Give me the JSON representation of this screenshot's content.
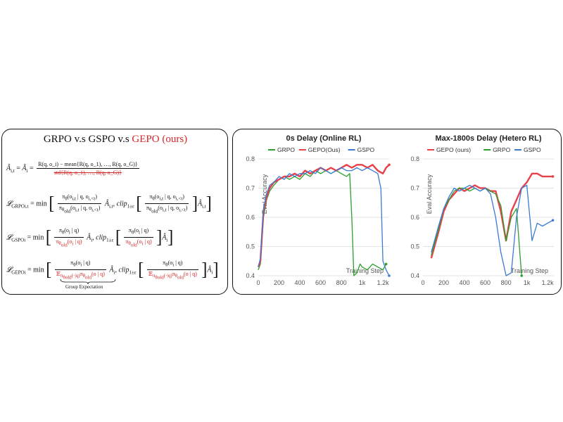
{
  "left": {
    "title_prefix": "GRPO v.s GSPO v.s ",
    "title_ours": "GEPO (ours)",
    "eq1": {
      "lhs": "Â",
      "numerator": "R(q, o_i) − mean{R(q, o_1), …, R(q, o_G)}",
      "denominator": "std{R(q, o_1), …, R(q, o_G)}"
    },
    "eq2": {
      "label": "GRPO",
      "clip": "clip"
    },
    "eq3": {
      "label": "GSPO",
      "clip": "clip"
    },
    "eq4": {
      "label": "GEPO",
      "clip": "clip",
      "brace_note": "Group Expectation"
    }
  },
  "chart_data": [
    {
      "type": "line",
      "title": "0s Delay (Online RL)",
      "ylabel": "Eval Accuracy",
      "xlabel": "Training Step",
      "xlim": [
        0,
        1260
      ],
      "ylim": [
        0.4,
        0.8
      ],
      "xticks": [
        "0",
        "200",
        "400",
        "600",
        "800",
        "1k",
        "1.2k"
      ],
      "xtick_values": [
        0,
        200,
        400,
        600,
        800,
        1000,
        1200
      ],
      "yticks": [
        "0.4",
        "0.5",
        "0.6",
        "0.7",
        "0.8"
      ],
      "ytick_values": [
        0.4,
        0.5,
        0.6,
        0.7,
        0.8
      ],
      "legend": [
        "GRPO",
        "GEPO(Ous)",
        "GSPO"
      ],
      "series": [
        {
          "name": "GRPO",
          "color": "#2ca02c",
          "x": [
            0,
            20,
            50,
            80,
            110,
            150,
            200,
            250,
            300,
            350,
            400,
            450,
            500,
            550,
            600,
            650,
            700,
            750,
            800,
            850,
            880,
            900,
            920,
            950,
            980,
            1000,
            1050,
            1100,
            1150,
            1200,
            1230
          ],
          "y": [
            0.42,
            0.44,
            0.6,
            0.66,
            0.69,
            0.71,
            0.73,
            0.74,
            0.73,
            0.74,
            0.73,
            0.75,
            0.74,
            0.76,
            0.75,
            0.76,
            0.75,
            0.76,
            0.75,
            0.74,
            0.75,
            0.6,
            0.4,
            0.41,
            0.44,
            0.43,
            0.42,
            0.44,
            0.43,
            0.42,
            0.44
          ]
        },
        {
          "name": "GEPO(Ous)",
          "color": "#e8414a",
          "x": [
            0,
            20,
            50,
            80,
            110,
            150,
            200,
            250,
            300,
            350,
            400,
            450,
            500,
            550,
            600,
            650,
            700,
            750,
            800,
            850,
            900,
            950,
            1000,
            1050,
            1100,
            1150,
            1200,
            1230,
            1260
          ],
          "y": [
            0.43,
            0.45,
            0.62,
            0.67,
            0.7,
            0.72,
            0.73,
            0.74,
            0.74,
            0.75,
            0.74,
            0.76,
            0.75,
            0.76,
            0.77,
            0.76,
            0.77,
            0.76,
            0.77,
            0.78,
            0.77,
            0.78,
            0.78,
            0.77,
            0.78,
            0.76,
            0.75,
            0.77,
            0.78
          ]
        },
        {
          "name": "GSPO",
          "color": "#3a7bd5",
          "x": [
            0,
            20,
            50,
            80,
            110,
            150,
            200,
            250,
            300,
            350,
            400,
            450,
            500,
            550,
            600,
            650,
            700,
            750,
            800,
            850,
            900,
            950,
            1000,
            1050,
            1100,
            1150,
            1180,
            1200,
            1230,
            1260
          ],
          "y": [
            0.43,
            0.46,
            0.63,
            0.68,
            0.71,
            0.72,
            0.74,
            0.73,
            0.75,
            0.74,
            0.75,
            0.75,
            0.76,
            0.75,
            0.77,
            0.76,
            0.75,
            0.76,
            0.77,
            0.76,
            0.76,
            0.77,
            0.76,
            0.77,
            0.76,
            0.75,
            0.7,
            0.45,
            0.42,
            0.4
          ]
        }
      ]
    },
    {
      "type": "line",
      "title": "Max-1800s Delay (Hetero RL)",
      "ylabel": "Eval Accuracy",
      "xlabel": "Training Step",
      "xlim": [
        0,
        1260
      ],
      "ylim": [
        0.4,
        0.8
      ],
      "xticks": [
        "0",
        "200",
        "400",
        "600",
        "800",
        "1k",
        "1.2k"
      ],
      "xtick_values": [
        0,
        200,
        400,
        600,
        800,
        1000,
        1200
      ],
      "yticks": [
        "0.4",
        "0.5",
        "0.6",
        "0.7",
        "0.8"
      ],
      "ytick_values": [
        0.4,
        0.5,
        0.6,
        0.7,
        0.8
      ],
      "legend": [
        "GEPO (ours)",
        "GRPO",
        "GSPO"
      ],
      "series": [
        {
          "name": "GEPO (ours)",
          "color": "#e8414a",
          "x": [
            80,
            150,
            200,
            250,
            300,
            350,
            400,
            450,
            500,
            550,
            600,
            650,
            700,
            750,
            800,
            850,
            900,
            950,
            1000,
            1050,
            1100,
            1150,
            1200,
            1250
          ],
          "y": [
            0.46,
            0.55,
            0.62,
            0.66,
            0.68,
            0.7,
            0.69,
            0.7,
            0.71,
            0.7,
            0.7,
            0.69,
            0.69,
            0.62,
            0.52,
            0.62,
            0.66,
            0.7,
            0.72,
            0.75,
            0.75,
            0.74,
            0.74,
            0.74
          ]
        },
        {
          "name": "GRPO",
          "color": "#2ca02c",
          "x": [
            80,
            150,
            200,
            250,
            300,
            350,
            400,
            450,
            500,
            550,
            600,
            650,
            700,
            750,
            800,
            850,
            900,
            950
          ],
          "y": [
            0.47,
            0.56,
            0.63,
            0.66,
            0.69,
            0.7,
            0.7,
            0.69,
            0.7,
            0.69,
            0.7,
            0.69,
            0.68,
            0.64,
            0.52,
            0.6,
            0.63,
            0.4
          ]
        },
        {
          "name": "GSPO",
          "color": "#3a7bd5",
          "x": [
            80,
            150,
            200,
            250,
            300,
            350,
            400,
            450,
            500,
            550,
            600,
            650,
            700,
            750,
            800,
            850,
            900,
            950,
            1000,
            1050,
            1100,
            1150,
            1200,
            1250
          ],
          "y": [
            0.48,
            0.57,
            0.63,
            0.67,
            0.7,
            0.69,
            0.7,
            0.71,
            0.7,
            0.69,
            0.7,
            0.68,
            0.6,
            0.48,
            0.4,
            0.41,
            0.6,
            0.7,
            0.71,
            0.52,
            0.58,
            0.57,
            0.58,
            0.59
          ]
        }
      ]
    }
  ]
}
